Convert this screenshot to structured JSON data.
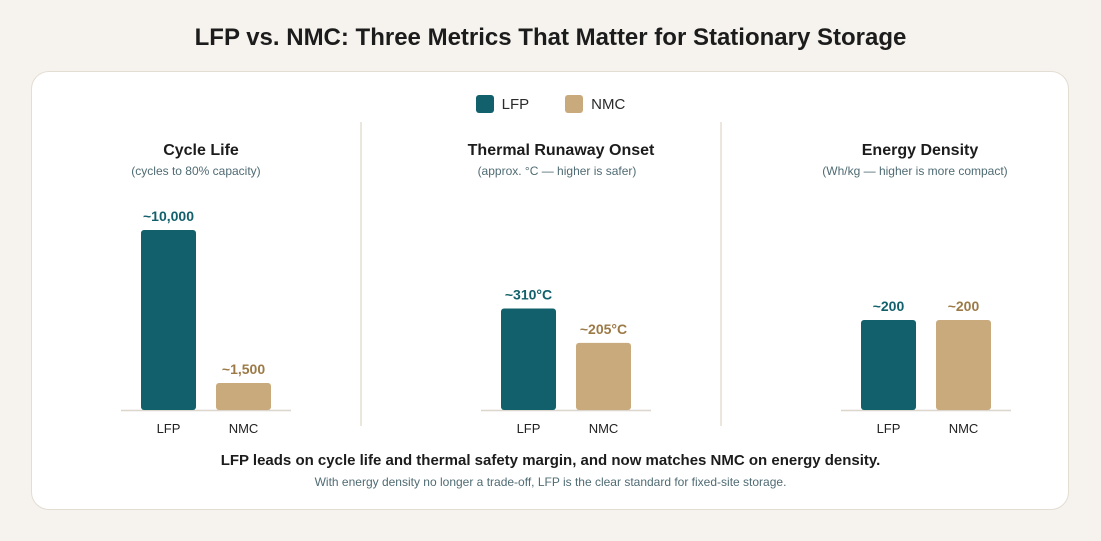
{
  "title": "LFP vs. NMC: Three Metrics That Matter for Stationary Storage",
  "legend": [
    {
      "label": "LFP",
      "color": "#12606b"
    },
    {
      "label": "NMC",
      "color": "#c9aa7c"
    }
  ],
  "colors": {
    "lfp": "#12606b",
    "nmc": "#c9aa7c",
    "nmc_label": "#9c7a47",
    "axis": "#dcd6cc"
  },
  "chart_data": [
    {
      "type": "bar",
      "title": "Cycle Life",
      "subtitle": "(cycles to 80% capacity)",
      "categories": [
        "LFP",
        "NMC"
      ],
      "values": [
        10000,
        1500
      ],
      "data_labels": [
        "~10,000",
        "~1,500"
      ],
      "ylim": [
        0,
        10000
      ]
    },
    {
      "type": "bar",
      "title": "Thermal Runaway Onset",
      "subtitle": "(approx. °C — higher is safer)",
      "categories": [
        "LFP",
        "NMC"
      ],
      "values": [
        310,
        205
      ],
      "data_labels": [
        "~310°C",
        "~205°C"
      ],
      "ylim": [
        0,
        550
      ]
    },
    {
      "type": "bar",
      "title": "Energy Density",
      "subtitle": "(Wh/kg — higher is more compact)",
      "categories": [
        "LFP",
        "NMC"
      ],
      "values": [
        200,
        200
      ],
      "data_labels": [
        "~200",
        "~200"
      ],
      "ylim": [
        0,
        400
      ]
    }
  ],
  "summary": "LFP leads on cycle life and thermal safety margin, and now matches NMC on energy density.",
  "note": "With energy density no longer a trade-off, LFP is the clear standard for fixed-site storage."
}
